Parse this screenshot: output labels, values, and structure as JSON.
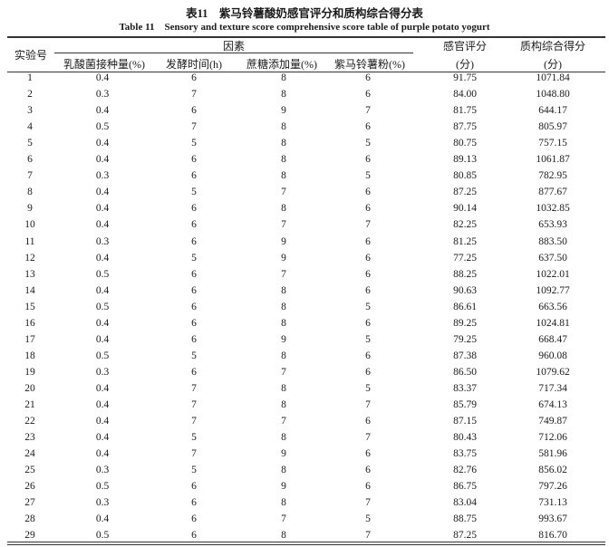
{
  "title": "表11　紫马铃薯酸奶感官评分和质构综合得分表",
  "subtitle": "Table 11　Sensory and texture score comprehensive score table of purple potato yogurt",
  "header": {
    "run": "实验号",
    "factors": "因素",
    "lab_inoculum": "乳酸菌接种量(%)",
    "ferment_time": "发酵时间(h)",
    "sucrose": "蔗糖添加量(%)",
    "potato_powder": "紫马铃薯粉(%)",
    "sensory_l1": "感官评分",
    "sensory_l2": "(分)",
    "texture_l1": "质构综合得分",
    "texture_l2": "(分)"
  },
  "rows": [
    [
      "1",
      "0.4",
      "6",
      "8",
      "6",
      "91.75",
      "1071.84"
    ],
    [
      "2",
      "0.3",
      "7",
      "8",
      "6",
      "84.00",
      "1048.80"
    ],
    [
      "3",
      "0.4",
      "6",
      "9",
      "7",
      "81.75",
      "644.17"
    ],
    [
      "4",
      "0.5",
      "7",
      "8",
      "6",
      "87.75",
      "805.97"
    ],
    [
      "5",
      "0.4",
      "5",
      "8",
      "5",
      "80.75",
      "757.15"
    ],
    [
      "6",
      "0.4",
      "6",
      "8",
      "6",
      "89.13",
      "1061.87"
    ],
    [
      "7",
      "0.3",
      "6",
      "8",
      "5",
      "80.85",
      "782.95"
    ],
    [
      "8",
      "0.4",
      "5",
      "7",
      "6",
      "87.25",
      "877.67"
    ],
    [
      "9",
      "0.4",
      "6",
      "8",
      "6",
      "90.14",
      "1032.85"
    ],
    [
      "10",
      "0.4",
      "6",
      "7",
      "7",
      "82.25",
      "653.93"
    ],
    [
      "11",
      "0.3",
      "6",
      "9",
      "6",
      "81.25",
      "883.50"
    ],
    [
      "12",
      "0.4",
      "5",
      "9",
      "6",
      "77.25",
      "637.50"
    ],
    [
      "13",
      "0.5",
      "6",
      "7",
      "6",
      "88.25",
      "1022.01"
    ],
    [
      "14",
      "0.4",
      "6",
      "8",
      "6",
      "90.63",
      "1092.77"
    ],
    [
      "15",
      "0.5",
      "6",
      "8",
      "5",
      "86.61",
      "663.56"
    ],
    [
      "16",
      "0.4",
      "6",
      "8",
      "6",
      "89.25",
      "1024.81"
    ],
    [
      "17",
      "0.4",
      "6",
      "9",
      "5",
      "79.25",
      "668.47"
    ],
    [
      "18",
      "0.5",
      "5",
      "8",
      "6",
      "87.38",
      "960.08"
    ],
    [
      "19",
      "0.3",
      "6",
      "7",
      "6",
      "86.50",
      "1079.62"
    ],
    [
      "20",
      "0.4",
      "7",
      "8",
      "5",
      "83.37",
      "717.34"
    ],
    [
      "21",
      "0.4",
      "7",
      "8",
      "7",
      "85.79",
      "674.13"
    ],
    [
      "22",
      "0.4",
      "7",
      "7",
      "6",
      "87.15",
      "749.87"
    ],
    [
      "23",
      "0.4",
      "5",
      "8",
      "7",
      "80.43",
      "712.06"
    ],
    [
      "24",
      "0.4",
      "7",
      "9",
      "6",
      "83.75",
      "581.96"
    ],
    [
      "25",
      "0.3",
      "5",
      "8",
      "6",
      "82.76",
      "856.02"
    ],
    [
      "26",
      "0.5",
      "6",
      "9",
      "6",
      "86.75",
      "797.26"
    ],
    [
      "27",
      "0.3",
      "6",
      "8",
      "7",
      "83.04",
      "731.13"
    ],
    [
      "28",
      "0.4",
      "6",
      "7",
      "5",
      "88.75",
      "993.67"
    ],
    [
      "29",
      "0.5",
      "6",
      "8",
      "7",
      "87.25",
      "816.70"
    ]
  ]
}
